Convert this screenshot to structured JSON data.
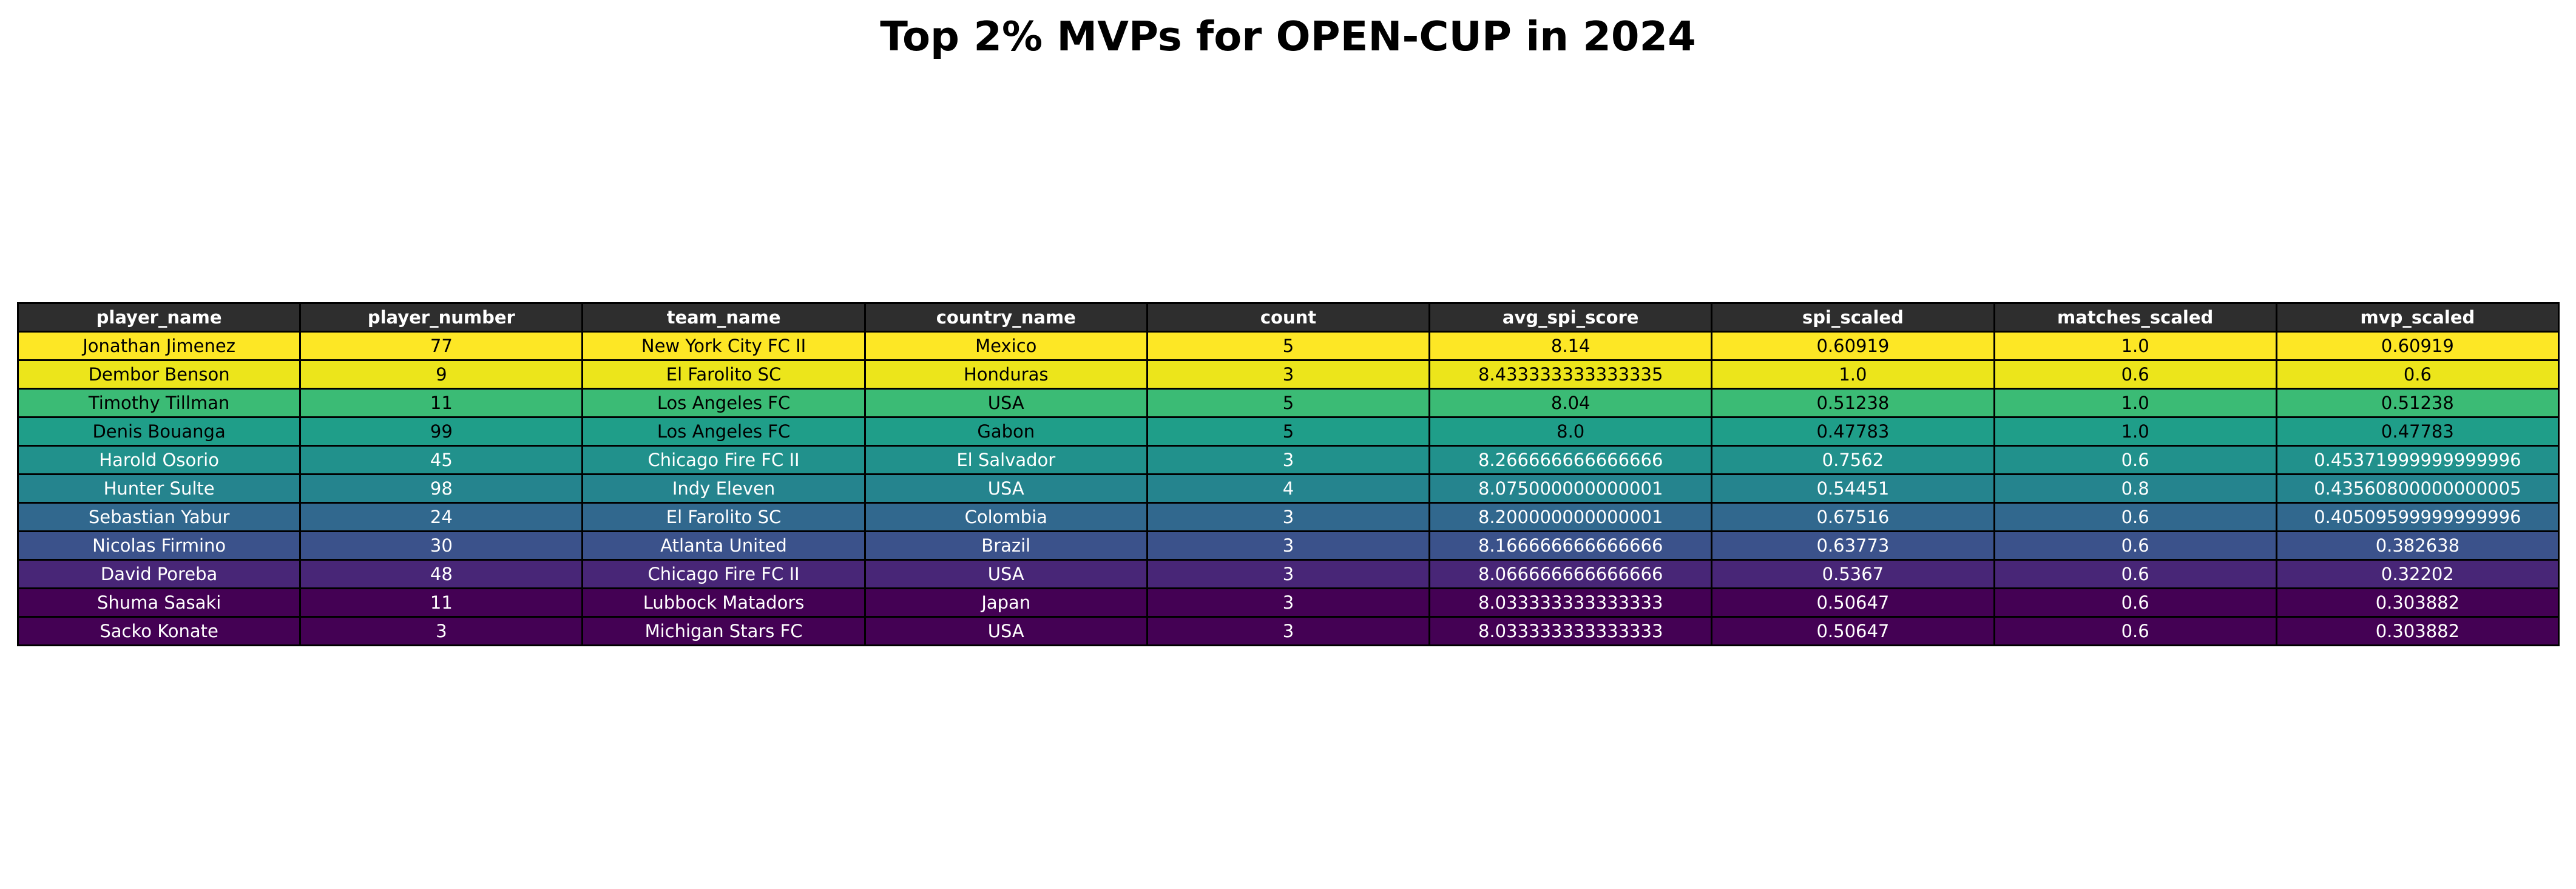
{
  "chart_data": {
    "type": "table",
    "title": "Top 2% MVPs for OPEN-CUP in 2024",
    "columns": [
      "player_name",
      "player_number",
      "team_name",
      "country_name",
      "count",
      "avg_spi_score",
      "spi_scaled",
      "matches_scaled",
      "mvp_scaled"
    ],
    "rows": [
      {
        "cells": [
          "Jonathan Jimenez",
          "77",
          "New York City FC II",
          "Mexico",
          "5",
          "8.14",
          "0.60919",
          "1.0",
          "0.60919"
        ],
        "bg": "#fde725",
        "fg": "#000000"
      },
      {
        "cells": [
          "Dembor Benson",
          "9",
          "El Farolito SC",
          "Honduras",
          "3",
          "8.433333333333335",
          "1.0",
          "0.6",
          "0.6"
        ],
        "bg": "#ece51b",
        "fg": "#000000"
      },
      {
        "cells": [
          "Timothy Tillman",
          "11",
          "Los Angeles FC",
          "USA",
          "5",
          "8.04",
          "0.51238",
          "1.0",
          "0.51238"
        ],
        "bg": "#3bbb75",
        "fg": "#000000"
      },
      {
        "cells": [
          "Denis Bouanga",
          "99",
          "Los Angeles FC",
          "Gabon",
          "5",
          "8.0",
          "0.47783",
          "1.0",
          "0.47783"
        ],
        "bg": "#1f9e89",
        "fg": "#000000"
      },
      {
        "cells": [
          "Harold Osorio",
          "45",
          "Chicago Fire FC II",
          "El Salvador",
          "3",
          "8.266666666666666",
          "0.7562",
          "0.6",
          "0.45371999999999996"
        ],
        "bg": "#21918c",
        "fg": "#ffffff"
      },
      {
        "cells": [
          "Hunter Sulte",
          "98",
          "Indy Eleven",
          "USA",
          "4",
          "8.075000000000001",
          "0.54451",
          "0.8",
          "0.43560800000000005"
        ],
        "bg": "#25848e",
        "fg": "#ffffff"
      },
      {
        "cells": [
          "Sebastian Yabur",
          "24",
          "El Farolito SC",
          "Colombia",
          "3",
          "8.200000000000001",
          "0.67516",
          "0.6",
          "0.40509599999999996"
        ],
        "bg": "#31688e",
        "fg": "#ffffff"
      },
      {
        "cells": [
          "Nicolas Firmino",
          "30",
          "Atlanta United",
          "Brazil",
          "3",
          "8.166666666666666",
          "0.63773",
          "0.6",
          "0.382638"
        ],
        "bg": "#3b528b",
        "fg": "#ffffff"
      },
      {
        "cells": [
          "David Poreba",
          "48",
          "Chicago Fire FC II",
          "USA",
          "3",
          "8.066666666666666",
          "0.5367",
          "0.6",
          "0.32202"
        ],
        "bg": "#482677",
        "fg": "#ffffff"
      },
      {
        "cells": [
          "Shuma Sasaki",
          "11",
          "Lubbock Matadors",
          "Japan",
          "3",
          "8.033333333333333",
          "0.50647",
          "0.6",
          "0.303882"
        ],
        "bg": "#440154",
        "fg": "#ffffff"
      },
      {
        "cells": [
          "Sacko Konate",
          "3",
          "Michigan Stars FC",
          "USA",
          "3",
          "8.033333333333333",
          "0.50647",
          "0.6",
          "0.303882"
        ],
        "bg": "#440154",
        "fg": "#ffffff"
      }
    ]
  }
}
